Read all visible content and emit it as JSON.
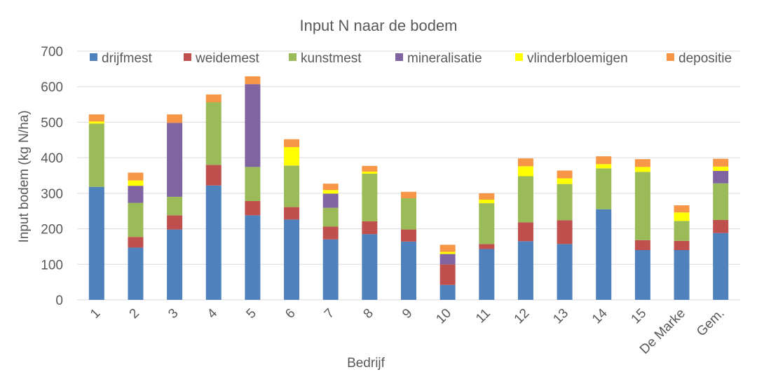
{
  "chart_data": {
    "type": "bar",
    "stacked": true,
    "title": "Input N naar de bodem",
    "xlabel": "Bedrijf",
    "ylabel": "Input bodem (kg N/ha)",
    "ylim": [
      0,
      700
    ],
    "yticks": [
      0,
      100,
      200,
      300,
      400,
      500,
      600,
      700
    ],
    "grid": true,
    "legend_position": "top",
    "categories": [
      "1",
      "2",
      "3",
      "4",
      "5",
      "6",
      "7",
      "8",
      "9",
      "10",
      "11",
      "12",
      "13",
      "14",
      "15",
      "De Marke",
      "Gem."
    ],
    "series": [
      {
        "name": "drijfmest",
        "color": "#4f81bd",
        "values": [
          318,
          147,
          198,
          322,
          238,
          226,
          170,
          185,
          164,
          42,
          143,
          165,
          157,
          255,
          140,
          140,
          188
        ]
      },
      {
        "name": "weidemest",
        "color": "#c0504d",
        "values": [
          0,
          30,
          40,
          58,
          40,
          35,
          36,
          36,
          34,
          58,
          14,
          53,
          67,
          0,
          28,
          26,
          37
        ]
      },
      {
        "name": "kunstmest",
        "color": "#9bbb59",
        "values": [
          178,
          96,
          52,
          176,
          96,
          117,
          53,
          134,
          88,
          0,
          115,
          130,
          102,
          115,
          192,
          56,
          103
        ]
      },
      {
        "name": "mineralisatie",
        "color": "#8064a2",
        "values": [
          0,
          48,
          208,
          0,
          233,
          0,
          40,
          0,
          0,
          29,
          0,
          0,
          0,
          0,
          0,
          0,
          35
        ]
      },
      {
        "name": "vlinderbloemigen",
        "color": "#ffff00",
        "values": [
          6,
          15,
          0,
          0,
          0,
          52,
          10,
          6,
          0,
          6,
          10,
          28,
          16,
          12,
          14,
          24,
          12
        ]
      },
      {
        "name": "depositie",
        "color": "#f79646",
        "values": [
          20,
          22,
          24,
          22,
          22,
          22,
          18,
          16,
          18,
          20,
          18,
          22,
          22,
          22,
          22,
          20,
          22
        ]
      }
    ]
  }
}
